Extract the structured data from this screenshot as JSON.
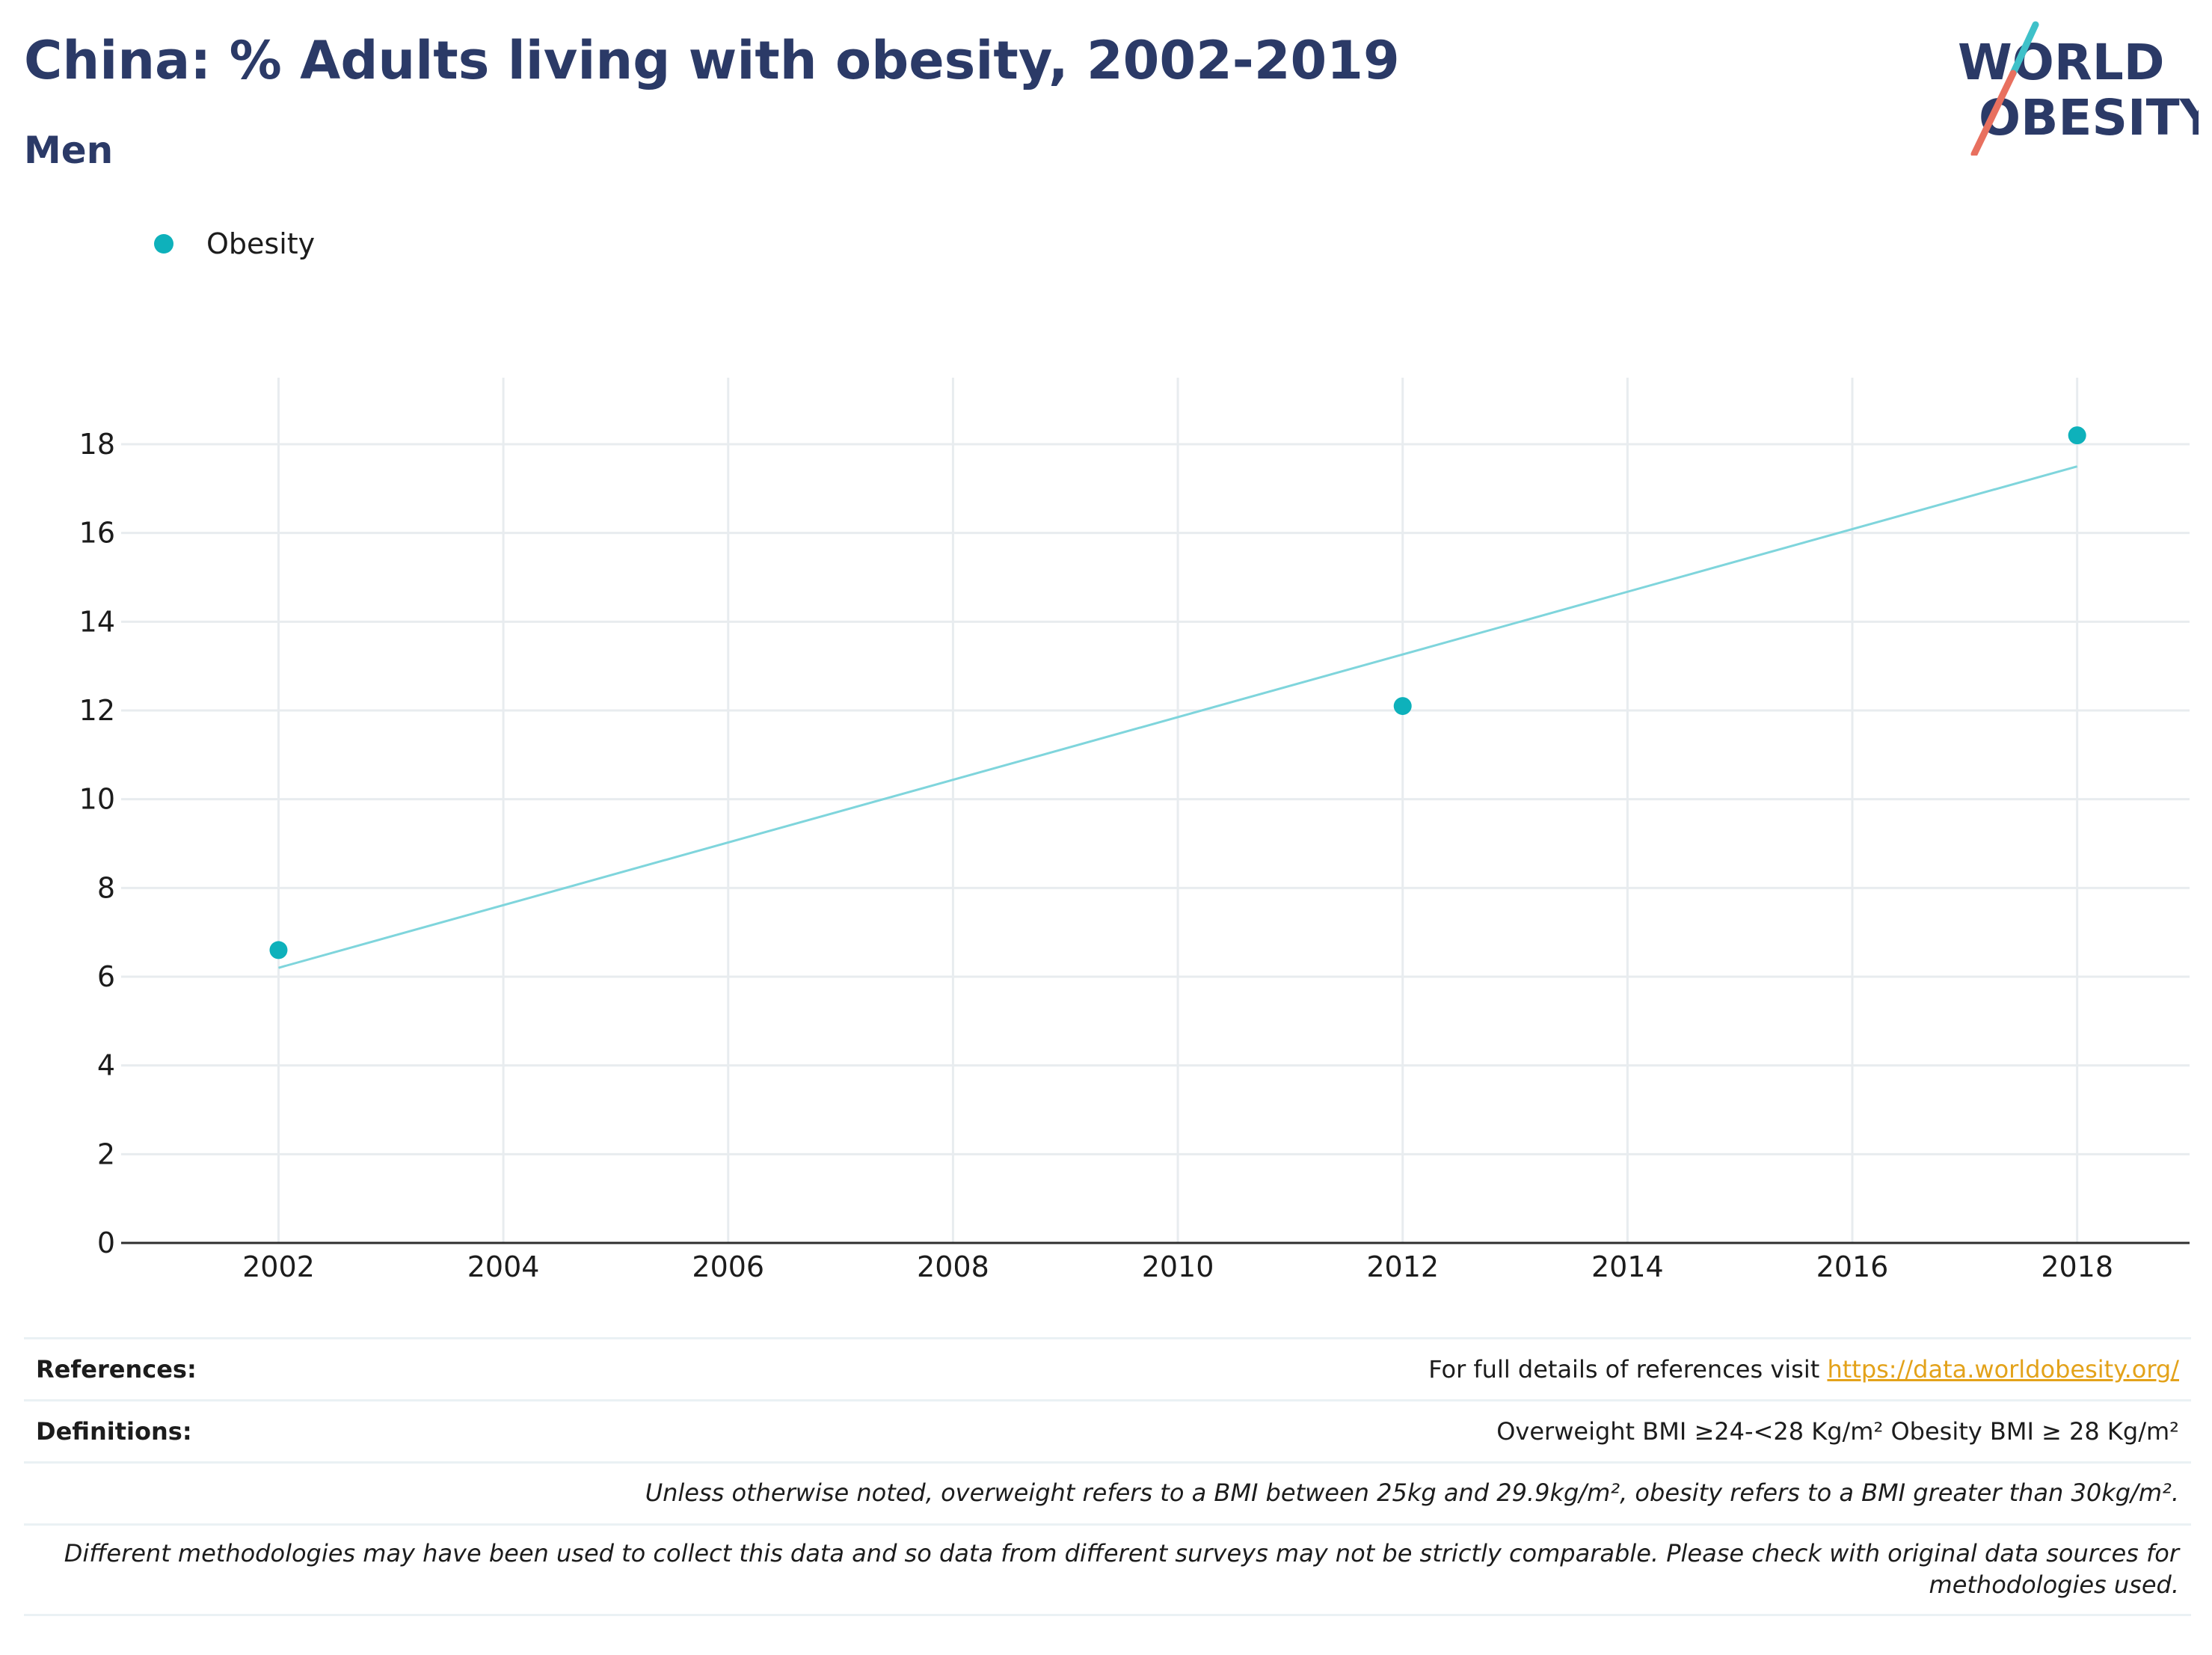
{
  "header": {
    "title": "China: % Adults living with obesity, 2002-2019",
    "subtitle": "Men"
  },
  "logo": {
    "line1": "WORLD",
    "line2": "OBESITY"
  },
  "colors": {
    "series": "#0eb1bb",
    "trend": "#7fd5dc",
    "title": "#2b3a67",
    "link": "#e3a21a",
    "logo_teal": "#3fc1c9",
    "logo_coral": "#e8705f"
  },
  "chart_data": {
    "type": "scatter",
    "title": "China: % Adults living with obesity, 2002-2019",
    "subtitle": "Men",
    "xlabel": "",
    "ylabel": "",
    "xlim": [
      2000.6,
      2019.0
    ],
    "ylim": [
      0,
      19.5
    ],
    "x_ticks": [
      2002,
      2004,
      2006,
      2008,
      2010,
      2012,
      2014,
      2016,
      2018
    ],
    "y_ticks": [
      0,
      2,
      4,
      6,
      8,
      10,
      12,
      14,
      16,
      18
    ],
    "grid": true,
    "legend_position": "top-left",
    "series": [
      {
        "name": "Obesity",
        "x": [
          2002,
          2012,
          2018
        ],
        "y": [
          6.6,
          12.1,
          18.2
        ]
      }
    ],
    "trendline": {
      "x": [
        2002,
        2018
      ],
      "y": [
        6.2,
        17.5
      ]
    }
  },
  "footer": {
    "references_label": "References:",
    "references_text": "For full details of references visit ",
    "references_link": "https://data.worldobesity.org/",
    "definitions_label": "Definitions:",
    "definitions_text": "Overweight BMI ≥24-<28 Kg/m² Obesity BMI ≥ 28 Kg/m²",
    "note1": "Unless otherwise noted, overweight refers to a BMI between 25kg and 29.9kg/m², obesity refers to a BMI greater than 30kg/m².",
    "note2": "Different methodologies may have been used to collect this data and so data from different surveys may not be strictly comparable. Please check with original data sources for methodologies used."
  }
}
